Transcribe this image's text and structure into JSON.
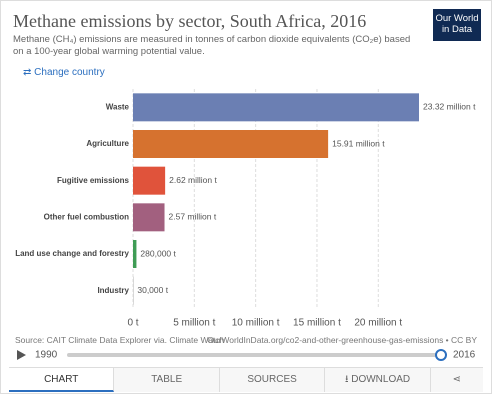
{
  "chart_data": {
    "type": "bar",
    "orientation": "horizontal",
    "title": "Methane emissions by sector, South Africa, 2016",
    "subtitle": "Methane (CH₄) emissions are measured in tonnes of carbon dioxide equivalents (CO₂e) based on a 100-year global warming potential value.",
    "categories": [
      "Waste",
      "Agriculture",
      "Fugitive emissions",
      "Other fuel combustion",
      "Land use change and forestry",
      "Industry"
    ],
    "values": [
      23320000,
      15910000,
      2620000,
      2570000,
      280000,
      30000
    ],
    "value_labels": [
      "23.32 million t",
      "15.91 million t",
      "2.62 million t",
      "2.57 million t",
      "280,000 t",
      "30,000 t"
    ],
    "colors": [
      "#6b7fb3",
      "#d6722f",
      "#e0533b",
      "#a2607f",
      "#3f9c55",
      "#9a9a9a"
    ],
    "xlim": [
      0,
      23320000
    ],
    "xticks": [
      {
        "value": 0,
        "label": "0 t"
      },
      {
        "value": 5000000,
        "label": "5 million t"
      },
      {
        "value": 10000000,
        "label": "10 million t"
      },
      {
        "value": 15000000,
        "label": "15 million t"
      },
      {
        "value": 20000000,
        "label": "20 million t"
      }
    ],
    "grid": true,
    "source": "Source: CAIT Climate Data Explorer via. Climate Watch",
    "url": "OurWorldInData.org/co2-and-other-greenhouse-gas-emissions • CC BY"
  },
  "header": {
    "logo": "Our World in Data",
    "change_country": "Change country"
  },
  "timeline": {
    "start": "1990",
    "end": "2016"
  },
  "tabs": [
    "CHART",
    "TABLE",
    "SOURCES",
    "DOWNLOAD"
  ]
}
